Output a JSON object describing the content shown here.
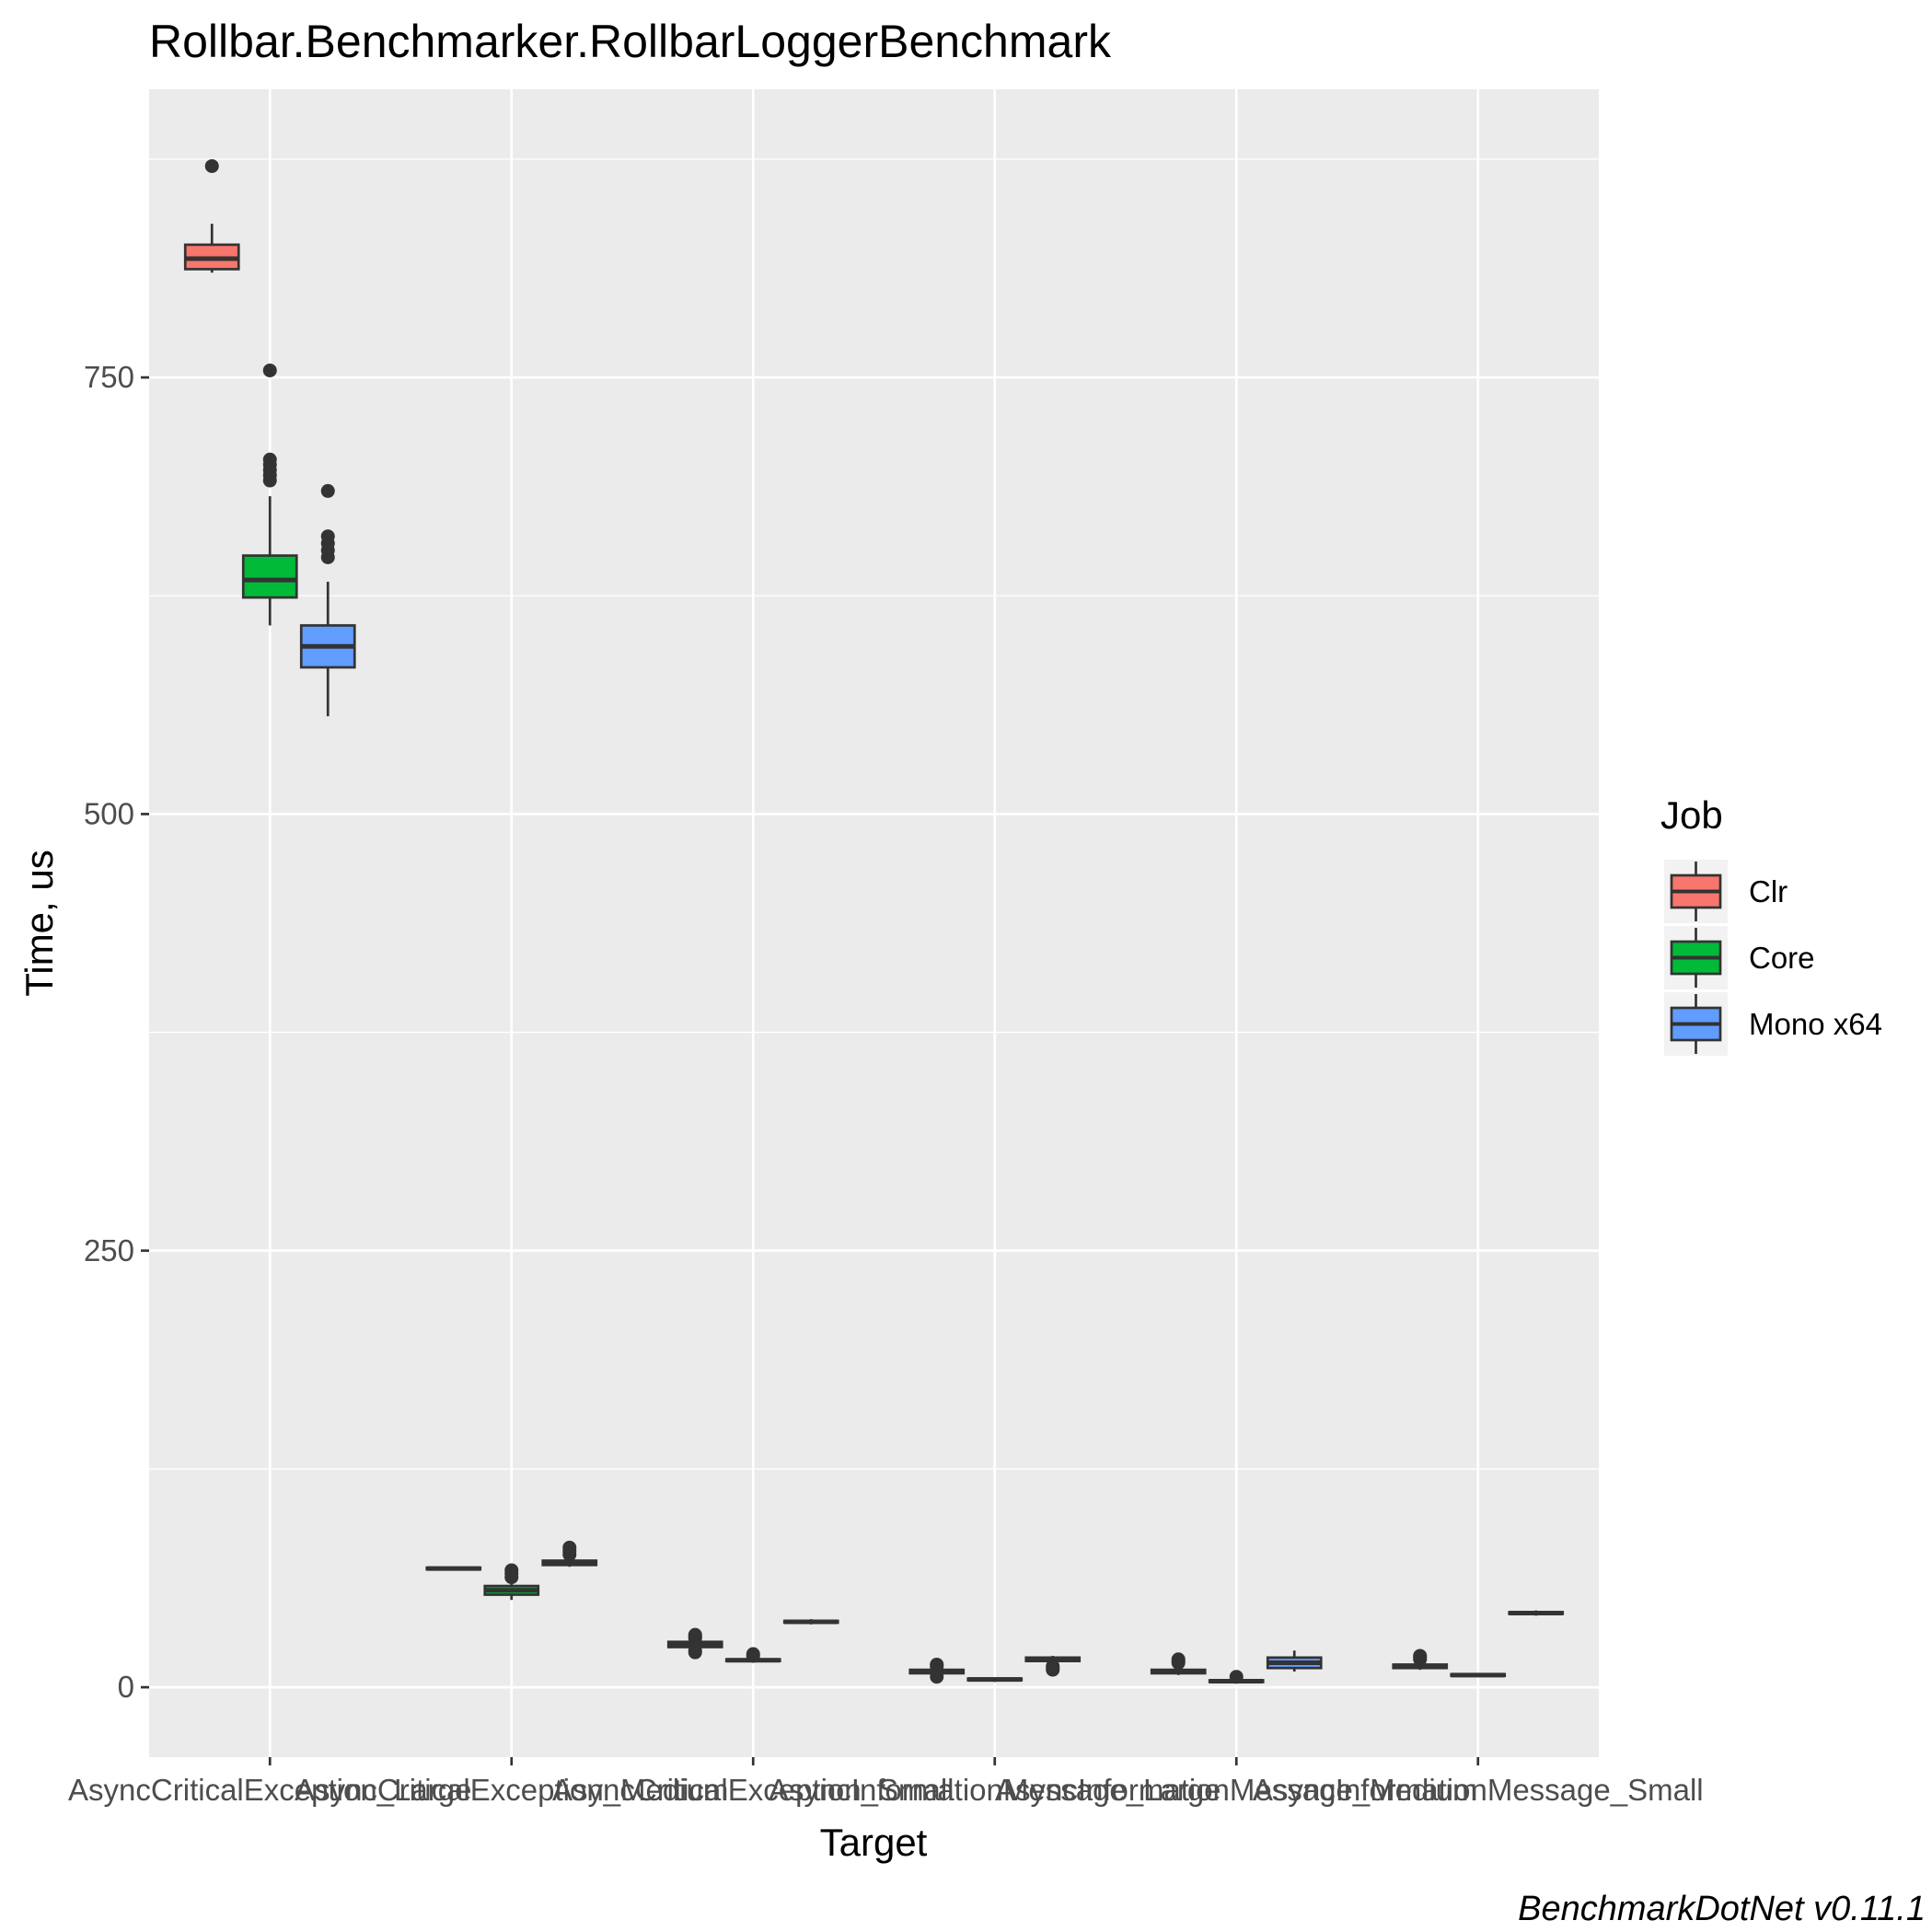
{
  "chart_data": {
    "type": "boxplot",
    "title": "Rollbar.Benchmarker.RollbarLoggerBenchmark",
    "xlabel": "Target",
    "ylabel": "Time, us",
    "ylim": [
      -40,
      915
    ],
    "yticks": [
      0,
      250,
      500,
      750
    ],
    "grid": true,
    "caption": "BenchmarkDotNet v0.11.1",
    "categories": [
      "AsyncCriticalException_Large",
      "AsyncCriticalException_Medium",
      "AsyncCriticalException_Small",
      "AsyncInformationMessage_Large",
      "AsyncInformationMessage_Medium",
      "AsyncInformationMessage_Small"
    ],
    "legend": {
      "title": "Job",
      "position": "right",
      "entries": [
        {
          "name": "Clr",
          "color": "#F8766D"
        },
        {
          "name": "Core",
          "color": "#00BA38"
        },
        {
          "name": "Mono x64",
          "color": "#619CFF"
        }
      ]
    },
    "series": [
      {
        "name": "Clr",
        "color": "#F8766D",
        "boxes": [
          {
            "min": 810,
            "q1": 812,
            "median": 818,
            "q3": 826,
            "max": 838,
            "outliers": [
              871
            ]
          },
          {
            "min": 67,
            "q1": 67.5,
            "median": 68,
            "q3": 68.5,
            "max": 69,
            "outliers": []
          },
          {
            "min": 22,
            "q1": 23,
            "median": 24.5,
            "q3": 26,
            "max": 27,
            "outliers": [
              20,
              21,
              28,
              29,
              30
            ]
          },
          {
            "min": 7,
            "q1": 8,
            "median": 9,
            "q3": 10,
            "max": 11,
            "outliers": [
              6,
              12,
              13
            ]
          },
          {
            "min": 7,
            "q1": 8,
            "median": 9,
            "q3": 10,
            "max": 12,
            "outliers": [
              14,
              15,
              16
            ]
          },
          {
            "min": 10,
            "q1": 11,
            "median": 12,
            "q3": 13,
            "max": 14,
            "outliers": [
              16,
              17,
              18
            ]
          }
        ]
      },
      {
        "name": "Core",
        "color": "#00BA38",
        "boxes": [
          {
            "min": 608,
            "q1": 624,
            "median": 634,
            "q3": 648,
            "max": 682,
            "outliers": [
              691,
              694,
              697,
              700,
              703,
              754
            ]
          },
          {
            "min": 50,
            "q1": 53,
            "median": 55.5,
            "q3": 58,
            "max": 61,
            "outliers": [
              63,
              65,
              67
            ]
          },
          {
            "min": 14,
            "q1": 15,
            "median": 15.5,
            "q3": 16,
            "max": 17,
            "outliers": [
              18,
              19
            ]
          },
          {
            "min": 3,
            "q1": 4,
            "median": 4.5,
            "q3": 5,
            "max": 5.5,
            "outliers": []
          },
          {
            "min": 2,
            "q1": 3,
            "median": 3.5,
            "q3": 4,
            "max": 5,
            "outliers": [
              6
            ]
          },
          {
            "min": 6,
            "q1": 6.5,
            "median": 7,
            "q3": 7.5,
            "max": 8,
            "outliers": []
          }
        ]
      },
      {
        "name": "Mono x64",
        "color": "#619CFF",
        "boxes": [
          {
            "min": 556,
            "q1": 584,
            "median": 596,
            "q3": 608,
            "max": 633,
            "outliers": [
              647,
              651,
              655,
              659,
              685
            ]
          },
          {
            "min": 69,
            "q1": 70,
            "median": 71,
            "q3": 72.5,
            "max": 74,
            "outliers": [
              76,
              78,
              80
            ]
          },
          {
            "min": 36,
            "q1": 37,
            "median": 37.5,
            "q3": 38,
            "max": 39,
            "outliers": []
          },
          {
            "min": 14,
            "q1": 15,
            "median": 16,
            "q3": 17,
            "max": 18,
            "outliers": [
              10,
              11,
              12
            ]
          },
          {
            "min": 9,
            "q1": 11,
            "median": 14,
            "q3": 17,
            "max": 21,
            "outliers": []
          },
          {
            "min": 41,
            "q1": 42,
            "median": 42.5,
            "q3": 43,
            "max": 44,
            "outliers": []
          }
        ]
      }
    ]
  }
}
